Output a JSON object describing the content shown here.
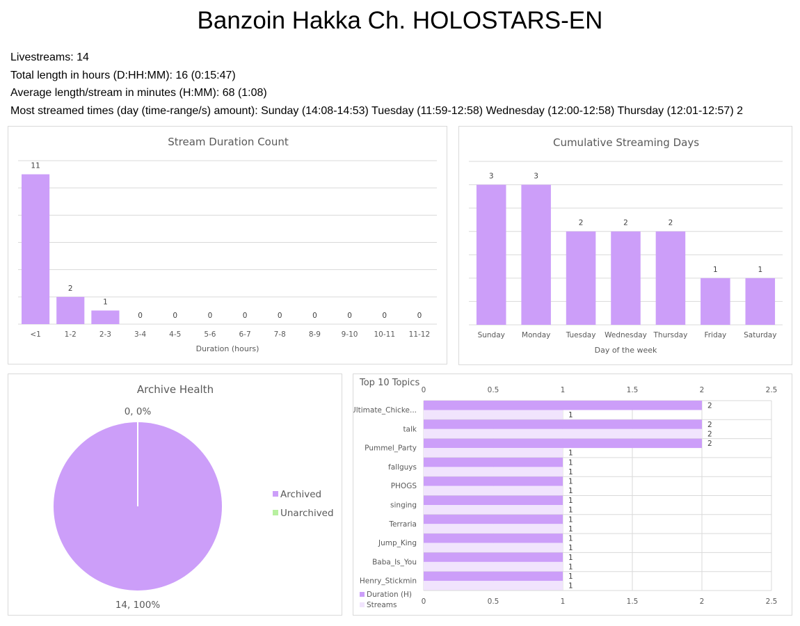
{
  "page": {
    "title": "Banzoin Hakka Ch. HOLOSTARS-EN"
  },
  "stats": {
    "livestreams": "Livestreams: 14",
    "total_length": "Total length in hours (D:HH:MM): 16 (0:15:47)",
    "average_length": "Average length/stream in minutes (H:MM): 68 (1:08)",
    "most_streamed": "Most streamed times (day (time-range/s) amount): Sunday (14:08-14:53) Tuesday (11:59-12:58) Wednesday (12:00-12:58) Thursday (12:01-12:57) 2"
  },
  "colors": {
    "bar": "#cc9ef9",
    "bar_light": "#f1e4fd",
    "unarchived": "#b8f0a0"
  },
  "chart_data": [
    {
      "type": "bar",
      "title": "Stream Duration Count",
      "xlabel": "Duration (hours)",
      "ylabel": "",
      "categories": [
        "<1",
        "1-2",
        "2-3",
        "3-4",
        "4-5",
        "5-6",
        "6-7",
        "7-8",
        "8-9",
        "9-10",
        "10-11",
        "11-12"
      ],
      "values": [
        11,
        2,
        1,
        0,
        0,
        0,
        0,
        0,
        0,
        0,
        0,
        0
      ],
      "ylim": [
        0,
        12
      ],
      "grid": true
    },
    {
      "type": "bar",
      "title": "Cumulative Streaming Days",
      "xlabel": "Day of the week",
      "ylabel": "",
      "categories": [
        "Sunday",
        "Monday",
        "Tuesday",
        "Wednesday",
        "Thursday",
        "Friday",
        "Saturday"
      ],
      "values": [
        3,
        3,
        2,
        2,
        2,
        1,
        1
      ],
      "ylim": [
        0,
        3.5
      ],
      "grid": true
    },
    {
      "type": "pie",
      "title": "Archive Health",
      "slices": [
        {
          "name": "Archived",
          "value": 14,
          "label": "14, 100%"
        },
        {
          "name": "Unarchived",
          "value": 0,
          "label": "0, 0%"
        }
      ],
      "legend": "right"
    },
    {
      "type": "bar",
      "orientation": "horizontal",
      "title": "Top 10 Topics",
      "categories": [
        "Ultimate_Chicke...",
        "talk",
        "Pummel_Party",
        "fallguys",
        "PHOGS",
        "singing",
        "Terraria",
        "Jump_King",
        "Baba_Is_You",
        "Henry_Stickmin"
      ],
      "series": [
        {
          "name": "Duration (H)",
          "values": [
            2,
            2,
            2,
            1,
            1,
            1,
            1,
            1,
            1,
            1
          ]
        },
        {
          "name": "Streams",
          "values": [
            1,
            2,
            1,
            1,
            1,
            1,
            1,
            1,
            1,
            1
          ]
        }
      ],
      "xlim": [
        0,
        2.5
      ],
      "xticks": [
        "0",
        "0.5",
        "1",
        "1.5",
        "2",
        "2.5"
      ],
      "legend": "bottom-left",
      "grid": true
    }
  ]
}
